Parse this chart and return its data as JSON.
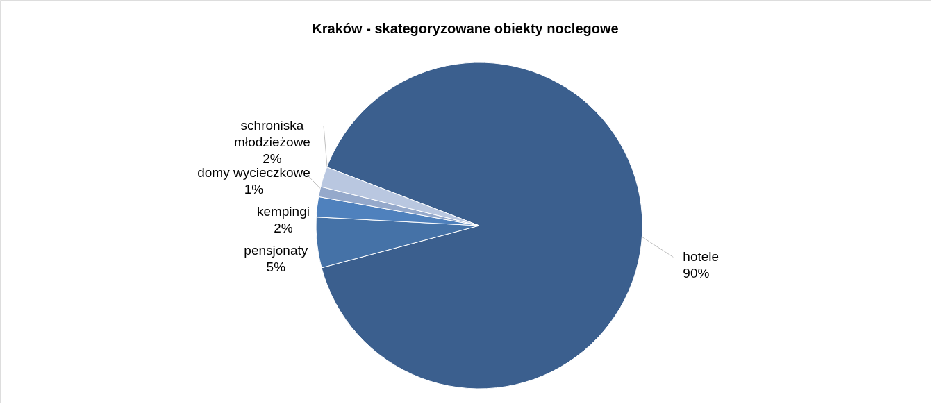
{
  "chart_data": {
    "type": "pie",
    "title": "Kraków - skategoryzowane obiekty noclegowe",
    "categories": [
      "hotele",
      "pensjonaty",
      "kempingi",
      "domy wycieczkowe",
      "schroniska\nmłodzieżowe"
    ],
    "values": [
      90,
      5,
      2,
      1,
      2
    ],
    "value_labels": [
      "90%",
      "5%",
      "2%",
      "1%",
      "2%"
    ],
    "colors": [
      "#3b5f8e",
      "#4572a7",
      "#4f81bd",
      "#95a9cb",
      "#b9c7e0"
    ]
  }
}
